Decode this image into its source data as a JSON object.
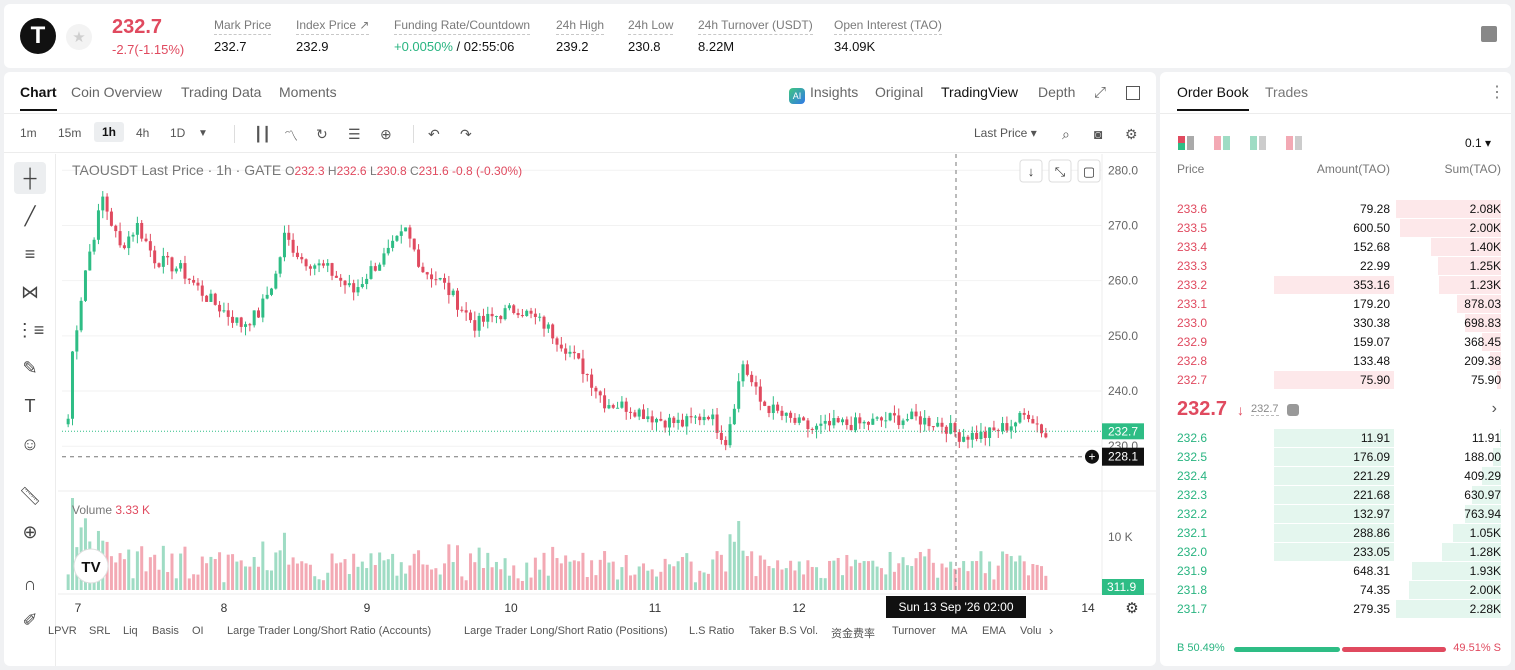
{
  "header": {
    "symbol_logo": "T",
    "last_price": "232.7",
    "change": "-2.7(-1.15%)",
    "stats": [
      {
        "label": "Mark Price",
        "value": "232.7"
      },
      {
        "label": "Index Price ↗",
        "value": "232.9"
      },
      {
        "label": "Funding Rate/Countdown",
        "value_green": "+0.0050%",
        "value": " / 02:55:06"
      },
      {
        "label": "24h High",
        "value": "239.2"
      },
      {
        "label": "24h Low",
        "value": "230.8"
      },
      {
        "label": "24h Turnover (USDT)",
        "value": "8.22M"
      },
      {
        "label": "Open Interest (TAO)",
        "value": "34.09K"
      }
    ]
  },
  "chart_tabs": [
    "Chart",
    "Coin Overview",
    "Trading Data",
    "Moments"
  ],
  "view_tabs": {
    "insights": "Insights",
    "original": "Original",
    "tradingview": "TradingView",
    "depth": "Depth"
  },
  "timeframes": [
    "1m",
    "15m",
    "1h",
    "4h",
    "1D"
  ],
  "price_type": "Last Price ▾",
  "legend": {
    "title": "TAOUSDT Last Price · 1h · GATE",
    "o_label": "O",
    "o": "232.3",
    "h_label": "H",
    "h": "232.6",
    "l_label": "L",
    "l": "230.8",
    "c_label": "C",
    "c": "231.6",
    "chg": "-0.8 (-0.30%)"
  },
  "volume_legend": {
    "label": "Volume",
    "value": "3.33 K"
  },
  "chart_data": {
    "type": "candlestick",
    "y_ticks": [
      "280.0",
      "270.0",
      "260.0",
      "250.0",
      "240.0",
      "230.0"
    ],
    "ylim": [
      227.5,
      281.5
    ],
    "volume_tick": "10 K",
    "x_ticks": [
      "7",
      "8",
      "9",
      "10",
      "11",
      "12",
      "14"
    ],
    "current_price_label": "232.7",
    "crosshair_price_label": "228.1",
    "crosshair_time_label": "Sun 13 Sep '26   02:00",
    "volume_current_label": "311.9",
    "watermark": "TV",
    "anchors": [
      [
        0,
        235
      ],
      [
        1,
        247
      ],
      [
        4,
        262
      ],
      [
        8,
        275
      ],
      [
        12,
        266
      ],
      [
        16,
        270
      ],
      [
        20,
        264
      ],
      [
        26,
        262
      ],
      [
        32,
        257
      ],
      [
        40,
        252
      ],
      [
        44,
        254
      ],
      [
        48,
        261
      ],
      [
        50,
        268
      ],
      [
        54,
        264
      ],
      [
        60,
        262
      ],
      [
        66,
        258
      ],
      [
        70,
        262
      ],
      [
        74,
        265
      ],
      [
        78,
        269
      ],
      [
        82,
        262
      ],
      [
        86,
        260
      ],
      [
        90,
        256
      ],
      [
        94,
        252
      ],
      [
        100,
        254
      ],
      [
        104,
        255
      ],
      [
        110,
        252
      ],
      [
        115,
        248
      ],
      [
        120,
        243
      ],
      [
        124,
        238
      ],
      [
        130,
        237
      ],
      [
        136,
        235
      ],
      [
        142,
        234
      ],
      [
        148,
        236
      ],
      [
        152,
        231
      ],
      [
        156,
        245
      ],
      [
        160,
        238
      ],
      [
        166,
        235
      ],
      [
        172,
        233
      ],
      [
        178,
        234
      ],
      [
        184,
        234
      ],
      [
        190,
        235
      ],
      [
        196,
        235
      ],
      [
        202,
        234
      ],
      [
        206,
        232
      ],
      [
        212,
        232
      ],
      [
        218,
        234
      ],
      [
        222,
        236
      ],
      [
        226,
        232
      ]
    ]
  },
  "bottom_indicators": [
    "LPVR",
    "SRL",
    "Liq",
    "Basis",
    "OI",
    "Large Trader Long/Short Ratio (Accounts)",
    "Large Trader Long/Short Ratio (Positions)",
    "L.S Ratio",
    "Taker B.S Vol.",
    "资金费率",
    "Turnover",
    "MA",
    "EMA",
    "Volu"
  ],
  "orderbook": {
    "tabs": [
      "Order Book",
      "Trades"
    ],
    "precision": "0.1 ▾",
    "col_price": "Price",
    "col_amount": "Amount(TAO)",
    "col_sum": "Sum(TAO)",
    "asks": [
      {
        "price": "233.6",
        "amount": "79.28",
        "sum": "2.08K",
        "fill": 1.0,
        "amount_fill": 0.0
      },
      {
        "price": "233.5",
        "amount": "600.50",
        "sum": "2.00K",
        "fill": 0.96,
        "amount_fill": 0.0
      },
      {
        "price": "233.4",
        "amount": "152.68",
        "sum": "1.40K",
        "fill": 0.67,
        "amount_fill": 0.0
      },
      {
        "price": "233.3",
        "amount": "22.99",
        "sum": "1.25K",
        "fill": 0.6,
        "amount_fill": 0.0
      },
      {
        "price": "233.2",
        "amount": "353.16",
        "sum": "1.23K",
        "fill": 0.59,
        "amount_fill": 0.59
      },
      {
        "price": "233.1",
        "amount": "179.20",
        "sum": "878.03",
        "fill": 0.42,
        "amount_fill": 0.0
      },
      {
        "price": "233.0",
        "amount": "330.38",
        "sum": "698.83",
        "fill": 0.34,
        "amount_fill": 0.0
      },
      {
        "price": "232.9",
        "amount": "159.07",
        "sum": "368.45",
        "fill": 0.18,
        "amount_fill": 0.0
      },
      {
        "price": "232.8",
        "amount": "133.48",
        "sum": "209.38",
        "fill": 0.1,
        "amount_fill": 0.0
      },
      {
        "price": "232.7",
        "amount": "75.90",
        "sum": "75.90",
        "fill": 0.04,
        "amount_fill": 0.5
      }
    ],
    "mid_price": "232.7",
    "mid_mark": "232.7",
    "bids": [
      {
        "price": "232.6",
        "amount": "11.91",
        "sum": "11.91",
        "fill": 0.01,
        "amount_fill": 0.5
      },
      {
        "price": "232.5",
        "amount": "176.09",
        "sum": "188.00",
        "fill": 0.08,
        "amount_fill": 0.5
      },
      {
        "price": "232.4",
        "amount": "221.29",
        "sum": "409.29",
        "fill": 0.18,
        "amount_fill": 0.5
      },
      {
        "price": "232.3",
        "amount": "221.68",
        "sum": "630.97",
        "fill": 0.28,
        "amount_fill": 0.5
      },
      {
        "price": "232.2",
        "amount": "132.97",
        "sum": "763.94",
        "fill": 0.34,
        "amount_fill": 0.5
      },
      {
        "price": "232.1",
        "amount": "288.86",
        "sum": "1.05K",
        "fill": 0.46,
        "amount_fill": 0.5
      },
      {
        "price": "232.0",
        "amount": "233.05",
        "sum": "1.28K",
        "fill": 0.56,
        "amount_fill": 0.5
      },
      {
        "price": "231.9",
        "amount": "648.31",
        "sum": "1.93K",
        "fill": 0.85,
        "amount_fill": 0.0
      },
      {
        "price": "231.8",
        "amount": "74.35",
        "sum": "2.00K",
        "fill": 0.88,
        "amount_fill": 0.0
      },
      {
        "price": "231.7",
        "amount": "279.35",
        "sum": "2.28K",
        "fill": 1.0,
        "amount_fill": 0.0
      }
    ],
    "buy_ratio": "B 50.49%",
    "sell_ratio": "49.51% S",
    "buy_fraction": 0.5049
  },
  "colors": {
    "up": "#2ebd85",
    "down": "#e04a5f",
    "up_vol": "#9fdcc4",
    "down_vol": "#f3a9b4"
  }
}
